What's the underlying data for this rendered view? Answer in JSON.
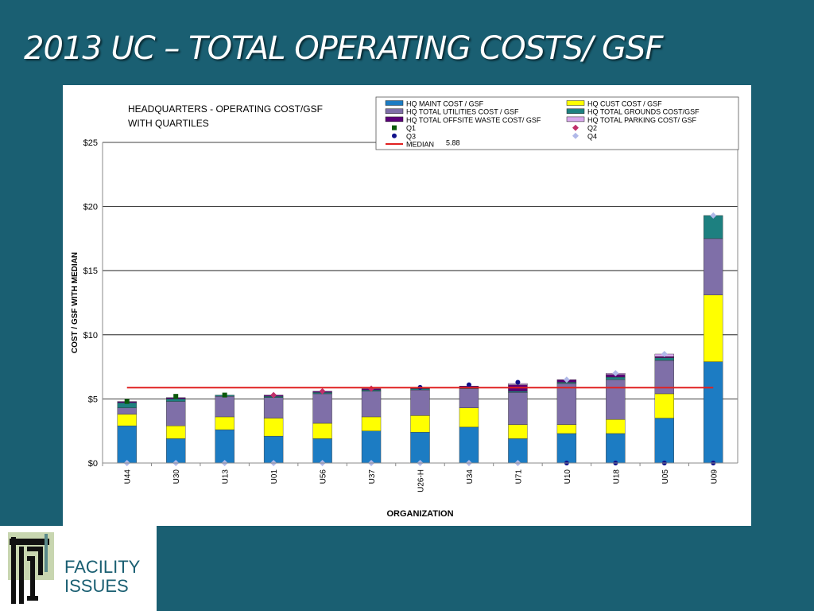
{
  "slide": {
    "title": "2013 UC – TOTAL OPERATING COSTS/ GSF",
    "background_color": "#1a5f72"
  },
  "logo": {
    "line1": "FACILITY",
    "line2": "ISSUES",
    "icon": "facility-issues-logo-icon"
  },
  "chart_data": {
    "type": "bar",
    "stacked": true,
    "title_lines": [
      "HEADQUARTERS - OPERATING COST/GSF",
      "WITH QUARTILES"
    ],
    "xlabel": "ORGANIZATION",
    "ylabel": "COST / GSF WITH MEDIAN",
    "ylim": [
      0,
      25
    ],
    "yticks": [
      "$0",
      "$5",
      "$10",
      "$15",
      "$20",
      "$25"
    ],
    "grid": true,
    "legend_position": "top-right",
    "categories": [
      "U44",
      "U30",
      "U13",
      "U01",
      "U56",
      "U37",
      "U26-H",
      "U34",
      "U71",
      "U10",
      "U18",
      "U05",
      "U09"
    ],
    "series": [
      {
        "name": "HQ MAINT COST / GSF",
        "color": "#1c7cc3",
        "values": [
          2.9,
          1.9,
          2.6,
          2.1,
          1.9,
          2.5,
          2.4,
          2.8,
          1.9,
          2.3,
          2.3,
          3.5,
          7.9
        ]
      },
      {
        "name": "HQ CUST COST / GSF",
        "color": "#ffff00",
        "values": [
          0.9,
          1.0,
          1.0,
          1.4,
          1.2,
          1.1,
          1.3,
          1.5,
          1.1,
          0.7,
          1.1,
          1.9,
          5.2
        ]
      },
      {
        "name": "HQ TOTAL UTILITIES COST / GSF",
        "color": "#7f6fa8",
        "values": [
          0.5,
          1.9,
          1.6,
          1.6,
          2.3,
          2.0,
          2.0,
          1.5,
          2.5,
          3.2,
          3.1,
          2.6,
          4.4
        ]
      },
      {
        "name": "HQ TOTAL GROUNDS COST/GSF",
        "color": "#1d8080",
        "values": [
          0.4,
          0.2,
          0.1,
          0.1,
          0.1,
          0.1,
          0.1,
          0.1,
          0.1,
          0.1,
          0.2,
          0.2,
          1.8
        ]
      },
      {
        "name": "HQ TOTAL OFFSITE WASTE COST/ GSF",
        "color": "#5a0078",
        "values": [
          0.1,
          0.1,
          0.0,
          0.1,
          0.1,
          0.1,
          0.1,
          0.1,
          0.5,
          0.2,
          0.2,
          0.1,
          0.0
        ]
      },
      {
        "name": "HQ TOTAL PARKING COST/ GSF",
        "color": "#d8a8ec",
        "values": [
          0.0,
          0.0,
          0.0,
          0.0,
          0.0,
          0.0,
          0.0,
          0.0,
          0.1,
          0.0,
          0.1,
          0.2,
          0.0
        ]
      }
    ],
    "markers": [
      {
        "name": "Q1",
        "color": "#0a5a0a",
        "shape": "square",
        "category_index": [
          0,
          1,
          2
        ],
        "values": [
          4.8,
          5.2,
          5.3
        ]
      },
      {
        "name": "Q2",
        "color": "#c0306a",
        "shape": "diamond",
        "category_index": [
          3,
          4,
          5
        ],
        "values": [
          5.3,
          5.6,
          5.8
        ]
      },
      {
        "name": "Q3",
        "color": "#10108a",
        "shape": "circle",
        "category_index": [
          6,
          7,
          8,
          9,
          10,
          11,
          12
        ],
        "values": [
          5.9,
          6.1,
          6.3,
          0,
          0,
          0,
          0
        ]
      },
      {
        "name": "Q4",
        "color": "#b0b8e8",
        "shape": "diamond",
        "category_index": [
          0,
          1,
          2,
          3,
          4,
          5,
          6,
          7,
          8,
          9,
          10,
          11,
          12
        ],
        "values": [
          0,
          0,
          0,
          0,
          0,
          0,
          0,
          0,
          0,
          6.5,
          7.0,
          8.5,
          19.3
        ]
      }
    ],
    "median": {
      "name": "MEDIAN",
      "label": "5.88",
      "value": 5.88,
      "color": "#e02020"
    }
  }
}
